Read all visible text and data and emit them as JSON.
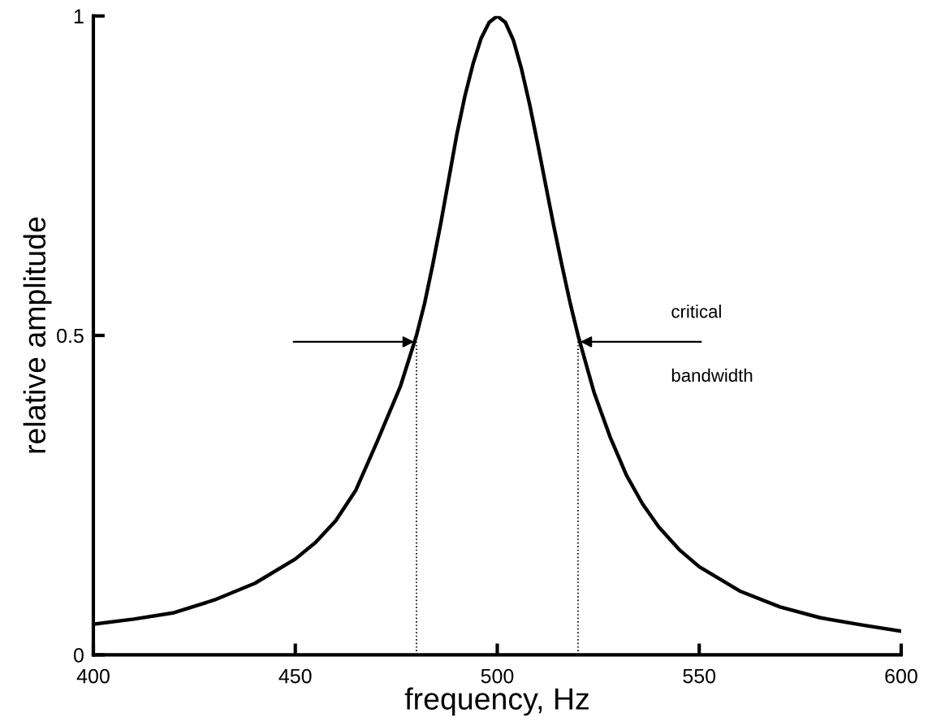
{
  "chart_data": {
    "type": "line",
    "xlabel": "frequency, Hz",
    "ylabel": "relative amplitude",
    "x": [
      400,
      410,
      420,
      430,
      440,
      450,
      455,
      460,
      465,
      470,
      474,
      476,
      478,
      480,
      482,
      484,
      486,
      488,
      490,
      492,
      494,
      496,
      498,
      500,
      502,
      504,
      506,
      508,
      510,
      512,
      514,
      516,
      518,
      520,
      524,
      528,
      532,
      536,
      540,
      545,
      550,
      560,
      570,
      580,
      590,
      600
    ],
    "series": [
      {
        "color": "#000000",
        "values": [
          0.048,
          0.056,
          0.066,
          0.086,
          0.112,
          0.15,
          0.176,
          0.21,
          0.258,
          0.33,
          0.39,
          0.42,
          0.46,
          0.5,
          0.55,
          0.61,
          0.675,
          0.745,
          0.815,
          0.875,
          0.925,
          0.965,
          0.99,
          1.0,
          0.99,
          0.962,
          0.917,
          0.862,
          0.8,
          0.735,
          0.671,
          0.61,
          0.552,
          0.5,
          0.41,
          0.34,
          0.281,
          0.236,
          0.2,
          0.165,
          0.138,
          0.1,
          0.075,
          0.058,
          0.047,
          0.037
        ]
      }
    ],
    "xlim": [
      400,
      600
    ],
    "ylim": [
      0,
      1
    ],
    "xticks": [
      400,
      450,
      500,
      550,
      600
    ],
    "yticks": [
      0,
      0.5,
      1
    ],
    "grid": false,
    "legend": false,
    "marker": "none",
    "line_style": "solid",
    "ref_lines": [
      {
        "axis": "x",
        "value": 480,
        "color": "#000000",
        "line_style": "dotted"
      },
      {
        "axis": "x",
        "value": 520,
        "color": "#000000",
        "line_style": "dotted"
      }
    ],
    "annotations": [
      "critical",
      "bandwidth"
    ]
  }
}
